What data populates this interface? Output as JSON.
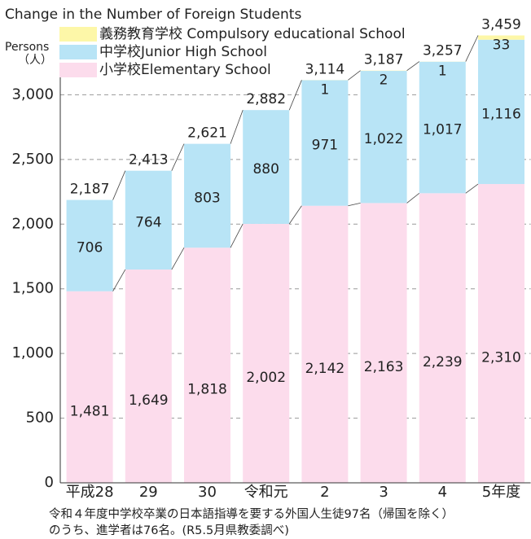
{
  "chart_data": {
    "type": "bar",
    "stacked": true,
    "title": "Change in the Number of Foreign Students",
    "y_label": [
      "Persons",
      "（人）"
    ],
    "categories": [
      "平成28",
      "29",
      "30",
      "令和元",
      "2",
      "3",
      "4",
      "5年度"
    ],
    "series": [
      {
        "name": "小学校Elementary School",
        "color": "#fcdcec",
        "values": [
          1481,
          1649,
          1818,
          2002,
          2142,
          2163,
          2239,
          2310
        ],
        "value_labels": [
          "1,481",
          "1,649",
          "1,818",
          "2,002",
          "2,142",
          "2,163",
          "2,239",
          "2,310"
        ]
      },
      {
        "name": "中学校Junior High School",
        "color": "#b8e4f6",
        "values": [
          706,
          764,
          803,
          880,
          971,
          1022,
          1017,
          1116
        ],
        "value_labels": [
          "706",
          "764",
          "803",
          "880",
          "971",
          "1,022",
          "1,017",
          "1,116"
        ]
      },
      {
        "name": "義務教育学校 Compulsory educational School",
        "color": "#fdf7a8",
        "values": [
          null,
          null,
          null,
          null,
          1,
          2,
          1,
          33
        ]
      }
    ],
    "totals": [
      2187,
      2413,
      2621,
      2882,
      3114,
      3187,
      3257,
      3459
    ],
    "total_labels": [
      "2,187",
      "2,413",
      "2,621",
      "2,882",
      "3,114",
      "3,187",
      "3,257",
      "3,459"
    ],
    "ylim": [
      0,
      3500
    ],
    "yticks": [
      0,
      500,
      {
        "value": 1000,
        "label": "1,000"
      },
      {
        "value": 1500,
        "label": "1,500"
      },
      {
        "value": 2000,
        "label": "2,000"
      },
      {
        "value": 2500,
        "label": "2,500"
      },
      {
        "value": 3000,
        "label": "3,000"
      }
    ],
    "grid": true,
    "note": [
      "令和４年度中学校卒業の日本語指導を要する外国人生徒97名（帰国を除く）",
      "のうち、進学者は76名。(R5.5月県教委調べ)"
    ]
  }
}
